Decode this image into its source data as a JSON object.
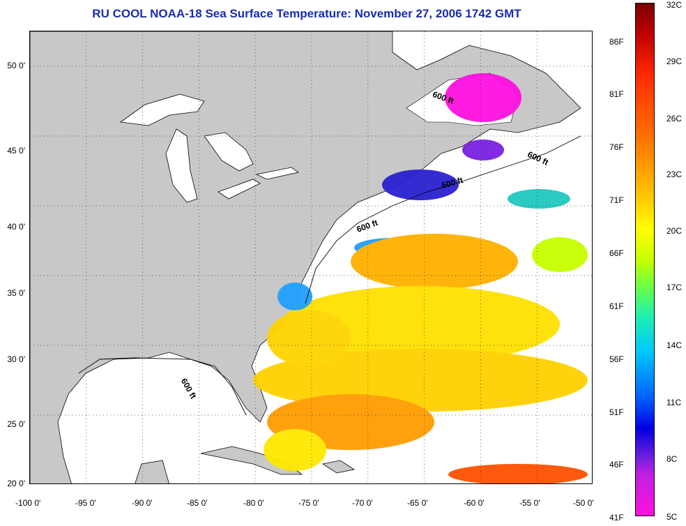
{
  "title": "RU COOL  NOAA-18  Sea Surface Temperature:  November 27, 2006 1742 GMT",
  "map": {
    "lon_labels": [
      "-100 0'",
      "-95 0'",
      "-90 0'",
      "-85 0'",
      "-80 0'",
      "-75 0'",
      "-70 0'",
      "-65 0'",
      "-60 0'",
      "-55 0'",
      "-50 0'"
    ],
    "lat_labels": [
      "50 0'",
      "45 0'",
      "40 0'",
      "35 0'",
      "30 0'",
      "25 0'",
      "20 0'"
    ],
    "lon_range": [
      -100,
      -50
    ],
    "lat_range": [
      20,
      52.5
    ],
    "grid": "dotted",
    "land_color": "#c8c8c8",
    "contour_label": "600 ft",
    "contour_labels": [
      "600 ft",
      "600 ft",
      "600 ft",
      "600 ft",
      "600 ft"
    ]
  },
  "colorbar": {
    "fahrenheit_labels": [
      "86F",
      "81F",
      "76F",
      "71F",
      "66F",
      "61F",
      "56F",
      "51F",
      "46F",
      "41F"
    ],
    "celsius_labels": [
      "32C",
      "29C",
      "26C",
      "23C",
      "20C",
      "17C",
      "14C",
      "11C",
      "8C",
      "5C"
    ],
    "range_c": [
      5,
      32
    ]
  }
}
